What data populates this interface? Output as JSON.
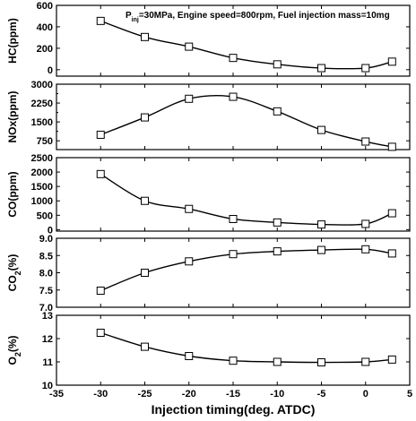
{
  "chart_data": {
    "type": "line",
    "annotation": {
      "p": "P",
      "sub": "inj",
      "rest": "=30MPa, Engine speed=800rpm, Fuel injection mass=10mg"
    },
    "xlabel": "Injection timing(deg. ATDC)",
    "xlim": [
      -35,
      5
    ],
    "x_ticks": [
      "-35",
      "-30",
      "-25",
      "-20",
      "-15",
      "-10",
      "-5",
      "0",
      "5"
    ],
    "x": [
      -30,
      -25,
      -20,
      -15,
      -10,
      -5,
      0,
      3
    ],
    "panels": [
      {
        "ylabel_main": "HC(ppm)",
        "ylabel_sub": "",
        "ylabel_tail": "",
        "ylim": [
          -60,
          600
        ],
        "y_ticks": [
          0,
          200,
          400,
          600
        ],
        "y_tick_labels": [
          "0",
          "200",
          "400",
          "600"
        ],
        "values": [
          455,
          305,
          215,
          110,
          50,
          15,
          15,
          75
        ]
      },
      {
        "ylabel_main": "NOx(ppm)",
        "ylabel_sub": "",
        "ylabel_tail": "",
        "ylim": [
          400,
          3000
        ],
        "y_ticks": [
          750,
          1500,
          2250,
          3000
        ],
        "y_tick_labels": [
          "750",
          "1500",
          "2250",
          "3000"
        ],
        "minor_ticks": [
          1125,
          1875,
          2625
        ],
        "values": [
          990,
          1680,
          2420,
          2500,
          1920,
          1180,
          720,
          510
        ]
      },
      {
        "ylabel_main": "CO(ppm)",
        "ylabel_sub": "",
        "ylabel_tail": "",
        "ylim": [
          -50,
          2500
        ],
        "y_ticks": [
          0,
          500,
          1000,
          1500,
          2000,
          2500
        ],
        "y_tick_labels": [
          "0",
          "500",
          "1000",
          "1500",
          "2000",
          "2500"
        ],
        "values": [
          1930,
          1000,
          720,
          370,
          250,
          180,
          200,
          570
        ]
      },
      {
        "ylabel_main": "CO",
        "ylabel_sub": "2",
        "ylabel_tail": "(%)",
        "ylim": [
          7.0,
          9.0
        ],
        "y_ticks": [
          7.0,
          7.5,
          8.0,
          8.5,
          9.0
        ],
        "y_tick_labels": [
          "7.0",
          "7.5",
          "8.0",
          "8.5",
          "9.0"
        ],
        "values": [
          7.48,
          8.0,
          8.33,
          8.54,
          8.62,
          8.66,
          8.68,
          8.56
        ]
      },
      {
        "ylabel_main": "O",
        "ylabel_sub": "2",
        "ylabel_tail": "(%)",
        "ylim": [
          10,
          13
        ],
        "y_ticks": [
          10,
          11,
          12,
          13
        ],
        "y_tick_labels": [
          "10",
          "11",
          "12",
          "13"
        ],
        "values": [
          12.25,
          11.65,
          11.25,
          11.05,
          11.0,
          10.98,
          11.0,
          11.1
        ]
      }
    ],
    "marker": "open-square",
    "line_style": "smooth",
    "colors": {
      "line": "#000000",
      "marker_fill": "#ffffff",
      "background": "#ffffff"
    }
  }
}
